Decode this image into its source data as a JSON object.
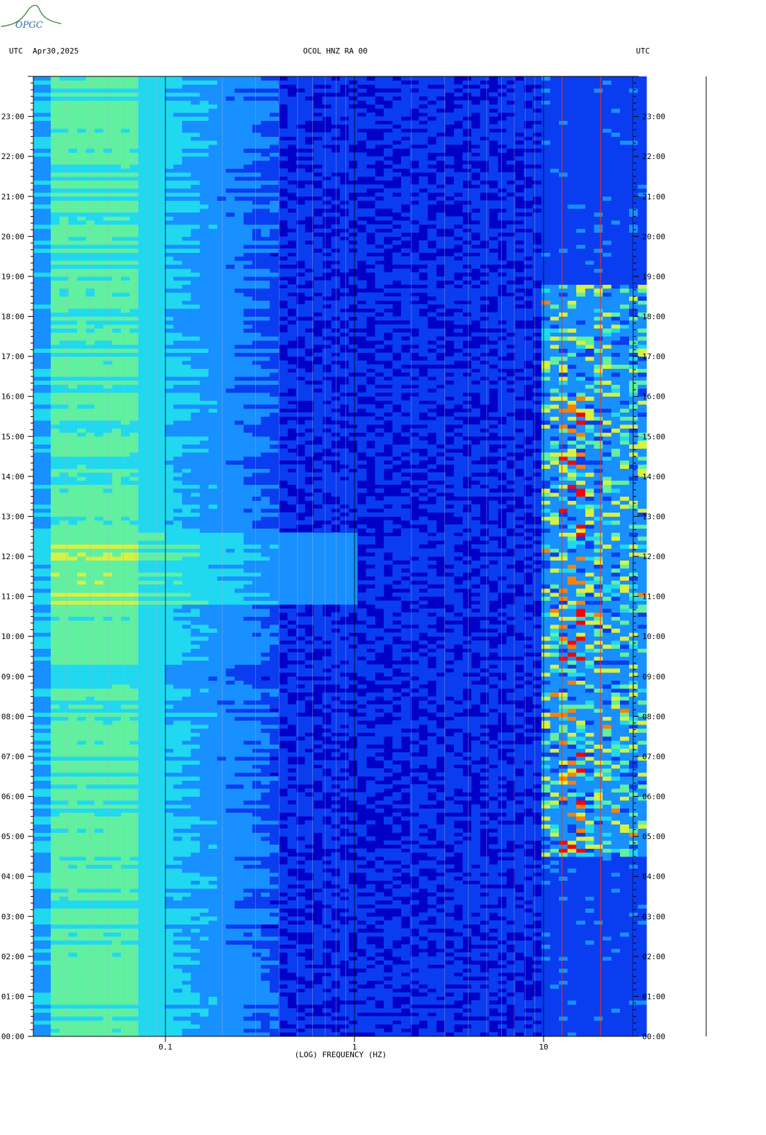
{
  "logo_text": "OPGC",
  "header": {
    "left_utc": "UTC",
    "date": "Apr30,2025",
    "station": "OCOL HNZ RA 00",
    "right_utc": "UTC"
  },
  "chart_data": {
    "type": "heatmap",
    "title": "OCOL HNZ RA 00",
    "xlabel": "(LOG) FREQUENCY (HZ)",
    "ylabel": "UTC",
    "x_scale": "log",
    "xlim": [
      0.02,
      35
    ],
    "x_ticks": [
      0.1,
      1,
      10
    ],
    "x_tick_labels": [
      "0.1",
      "1",
      "10"
    ],
    "ylim_hours": [
      0,
      24
    ],
    "y_tick_labels": [
      "00:00",
      "01:00",
      "02:00",
      "03:00",
      "04:00",
      "05:00",
      "06:00",
      "07:00",
      "08:00",
      "09:00",
      "10:00",
      "11:00",
      "12:00",
      "13:00",
      "14:00",
      "15:00",
      "16:00",
      "17:00",
      "18:00",
      "19:00",
      "20:00",
      "21:00",
      "22:00",
      "23:00"
    ],
    "colormap": [
      "#0000c8",
      "#0a3cf0",
      "#1890ff",
      "#20d8f0",
      "#60f0a0",
      "#d8f040",
      "#ff8000",
      "#ff0000"
    ],
    "energetic_bands": [
      {
        "hz_range": [
          0.02,
          0.1
        ],
        "level": "high"
      },
      {
        "hz_range": [
          0.2,
          0.5
        ],
        "level": "moderate",
        "hours": [
          10.8,
          12.6
        ]
      },
      {
        "hz_range": [
          10,
          30
        ],
        "level": "high",
        "hours": [
          4.5,
          18.8
        ]
      }
    ],
    "red_lines_hz": [
      12.5,
      20
    ]
  }
}
